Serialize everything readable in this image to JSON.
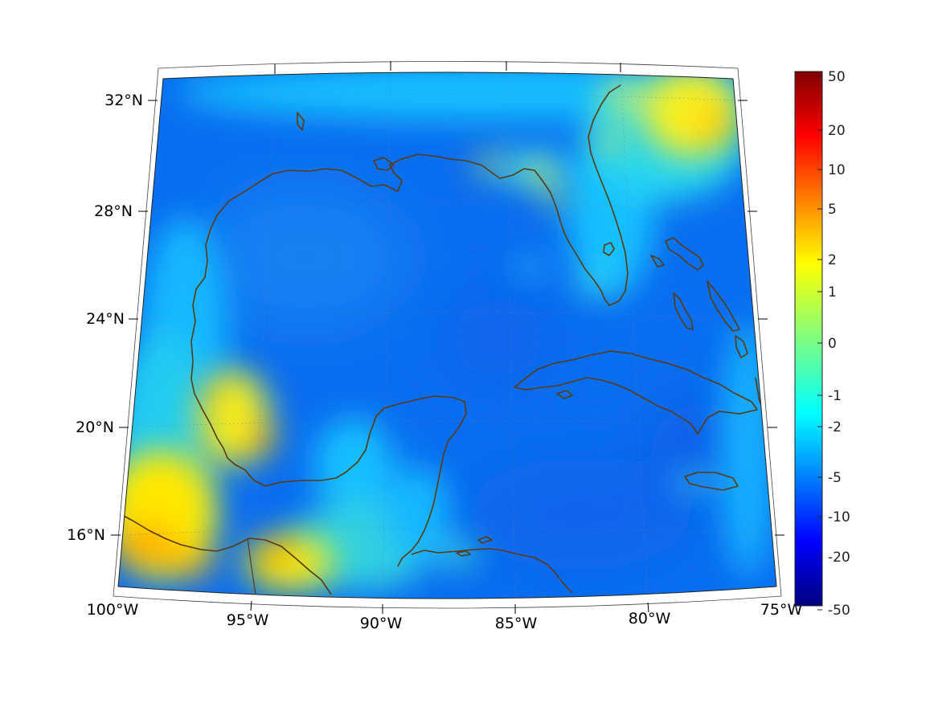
{
  "map": {
    "projection": "conic",
    "extent": {
      "lon": [
        -100,
        -75
      ],
      "lat": [
        14,
        33
      ]
    },
    "lon_ticks": [
      "100°W",
      "95°W",
      "90°W",
      "85°W",
      "80°W",
      "75°W"
    ],
    "lat_ticks": [
      "32°N",
      "28°N",
      "24°N",
      "20°N",
      "16°N"
    ],
    "coastline_color": "#5a3a12",
    "grid": true
  },
  "colorbar": {
    "colormap": "jet",
    "orientation": "vertical",
    "placement": "right",
    "labels": [
      "50",
      "20",
      "10",
      "5",
      "2",
      "1",
      "0",
      "-1",
      "-2",
      "-5",
      "-10",
      "-20",
      "-50"
    ]
  },
  "field": {
    "dominant_level_ocean": "-5",
    "warm_regions": [
      "Mexico Pacific coast",
      "Veracruz coast",
      "Atlantic off Georgia/Carolina",
      "Florida Panhandle coast"
    ]
  }
}
